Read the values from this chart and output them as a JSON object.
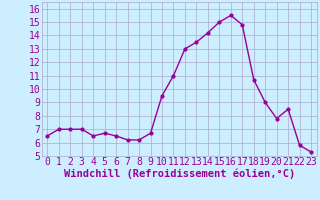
{
  "x": [
    0,
    1,
    2,
    3,
    4,
    5,
    6,
    7,
    8,
    9,
    10,
    11,
    12,
    13,
    14,
    15,
    16,
    17,
    18,
    19,
    20,
    21,
    22,
    23
  ],
  "y": [
    6.5,
    7.0,
    7.0,
    7.0,
    6.5,
    6.7,
    6.5,
    6.2,
    6.2,
    6.7,
    9.5,
    11.0,
    13.0,
    13.5,
    14.2,
    15.0,
    15.5,
    14.8,
    10.7,
    9.0,
    7.8,
    8.5,
    5.8,
    5.3
  ],
  "line_color": "#990099",
  "marker_color": "#990099",
  "bg_color": "#cceeff",
  "grid_color": "#aaaacc",
  "xlabel": "Windchill (Refroidissement éolien,°C)",
  "ylim": [
    5,
    16.5
  ],
  "xlim": [
    -0.5,
    23.5
  ],
  "yticks": [
    5,
    6,
    7,
    8,
    9,
    10,
    11,
    12,
    13,
    14,
    15,
    16
  ],
  "xticks": [
    0,
    1,
    2,
    3,
    4,
    5,
    6,
    7,
    8,
    9,
    10,
    11,
    12,
    13,
    14,
    15,
    16,
    17,
    18,
    19,
    20,
    21,
    22,
    23
  ],
  "tick_label_color": "#990099",
  "xlabel_color": "#990099",
  "xlabel_fontsize": 7.5,
  "tick_fontsize": 7
}
